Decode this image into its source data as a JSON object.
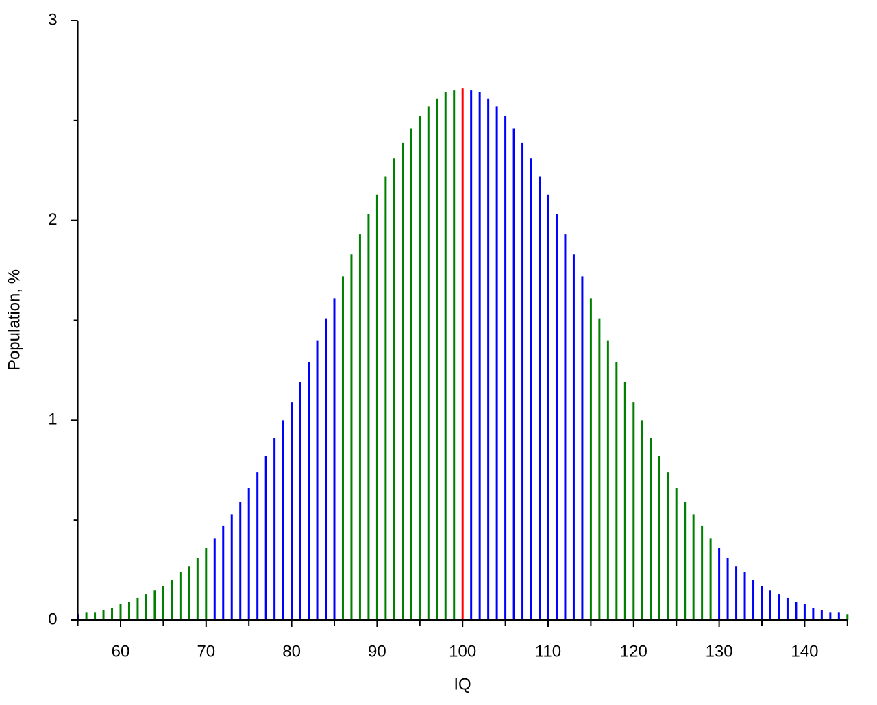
{
  "chart_data": {
    "type": "stem",
    "x_label": "IQ",
    "y_label": "Population, %",
    "x": [
      55,
      56,
      57,
      58,
      59,
      60,
      61,
      62,
      63,
      64,
      65,
      66,
      67,
      68,
      69,
      70,
      71,
      72,
      73,
      74,
      75,
      76,
      77,
      78,
      79,
      80,
      81,
      82,
      83,
      84,
      85,
      86,
      87,
      88,
      89,
      90,
      91,
      92,
      93,
      94,
      95,
      96,
      97,
      98,
      99,
      100,
      101,
      102,
      103,
      104,
      105,
      106,
      107,
      108,
      109,
      110,
      111,
      112,
      113,
      114,
      115,
      116,
      117,
      118,
      119,
      120,
      121,
      122,
      123,
      124,
      125,
      126,
      127,
      128,
      129,
      130,
      131,
      132,
      133,
      134,
      135,
      136,
      137,
      138,
      139,
      140,
      141,
      142,
      143,
      144,
      145
    ],
    "values": [
      0.03,
      0.04,
      0.04,
      0.05,
      0.06,
      0.08,
      0.09,
      0.11,
      0.13,
      0.15,
      0.17,
      0.2,
      0.24,
      0.27,
      0.31,
      0.36,
      0.41,
      0.47,
      0.53,
      0.59,
      0.66,
      0.74,
      0.82,
      0.91,
      1.0,
      1.09,
      1.19,
      1.29,
      1.4,
      1.51,
      1.61,
      1.72,
      1.83,
      1.93,
      2.03,
      2.13,
      2.22,
      2.31,
      2.39,
      2.46,
      2.52,
      2.57,
      2.61,
      2.64,
      2.65,
      2.66,
      2.65,
      2.64,
      2.61,
      2.57,
      2.52,
      2.46,
      2.39,
      2.31,
      2.22,
      2.13,
      2.03,
      1.93,
      1.83,
      1.72,
      1.61,
      1.51,
      1.4,
      1.29,
      1.19,
      1.09,
      1.0,
      0.91,
      0.82,
      0.74,
      0.66,
      0.59,
      0.53,
      0.47,
      0.41,
      0.36,
      0.31,
      0.27,
      0.24,
      0.2,
      0.17,
      0.15,
      0.13,
      0.11,
      0.09,
      0.08,
      0.06,
      0.05,
      0.04,
      0.04,
      0.03
    ],
    "colors": [
      "blue",
      "green",
      "green",
      "green",
      "green",
      "green",
      "green",
      "green",
      "green",
      "green",
      "green",
      "green",
      "green",
      "green",
      "green",
      "green",
      "blue",
      "blue",
      "blue",
      "blue",
      "blue",
      "blue",
      "blue",
      "blue",
      "blue",
      "blue",
      "blue",
      "blue",
      "blue",
      "blue",
      "blue",
      "green",
      "green",
      "green",
      "green",
      "green",
      "green",
      "green",
      "green",
      "green",
      "green",
      "green",
      "green",
      "green",
      "green",
      "red",
      "blue",
      "blue",
      "blue",
      "blue",
      "blue",
      "blue",
      "blue",
      "blue",
      "blue",
      "blue",
      "blue",
      "blue",
      "blue",
      "blue",
      "green",
      "green",
      "green",
      "green",
      "green",
      "green",
      "green",
      "green",
      "green",
      "green",
      "green",
      "green",
      "green",
      "green",
      "green",
      "blue",
      "blue",
      "blue",
      "blue",
      "blue",
      "blue",
      "blue",
      "blue",
      "blue",
      "blue",
      "blue",
      "blue",
      "blue",
      "blue",
      "blue",
      "green"
    ],
    "xlim": [
      55,
      145
    ],
    "xticks": [
      60,
      70,
      80,
      90,
      100,
      110,
      120,
      130,
      140
    ],
    "xminor_ticks": [
      55,
      65,
      75,
      85,
      95,
      105,
      115,
      125,
      135,
      145
    ],
    "ylim": [
      0,
      3
    ],
    "yticks": [
      0,
      1,
      2,
      3
    ],
    "yminor_ticks": [
      0.5,
      1.5,
      2.5
    ]
  }
}
